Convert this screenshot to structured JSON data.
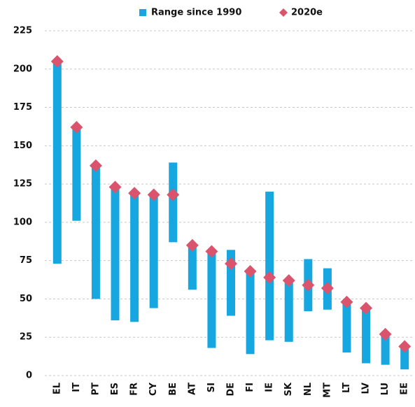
{
  "chart_data": {
    "type": "range-bar",
    "categories": [
      "EL",
      "IT",
      "PT",
      "ES",
      "FR",
      "CY",
      "BE",
      "AT",
      "SI",
      "DE",
      "FI",
      "IE",
      "SK",
      "NL",
      "MT",
      "LT",
      "LV",
      "LU",
      "EE"
    ],
    "series": [
      {
        "name": "Range since 1990",
        "color": "#16a7e0",
        "low": [
          73,
          101,
          50,
          36,
          35,
          44,
          87,
          56,
          18,
          39,
          14,
          23,
          22,
          42,
          43,
          15,
          8,
          7,
          4
        ],
        "high": [
          205,
          163,
          137,
          123,
          119,
          119,
          139,
          85,
          81,
          82,
          68,
          120,
          62,
          76,
          70,
          48,
          44,
          27,
          19
        ]
      },
      {
        "name": "2020e",
        "color": "#d9546c",
        "values": [
          205,
          162,
          137,
          123,
          119,
          118,
          118,
          85,
          81,
          73,
          68,
          64,
          62,
          59,
          57,
          48,
          44,
          27,
          19
        ]
      }
    ],
    "ylim": [
      0,
      225
    ],
    "yticks": [
      0,
      25,
      50,
      75,
      100,
      125,
      150,
      175,
      200,
      225
    ],
    "grid": true
  }
}
